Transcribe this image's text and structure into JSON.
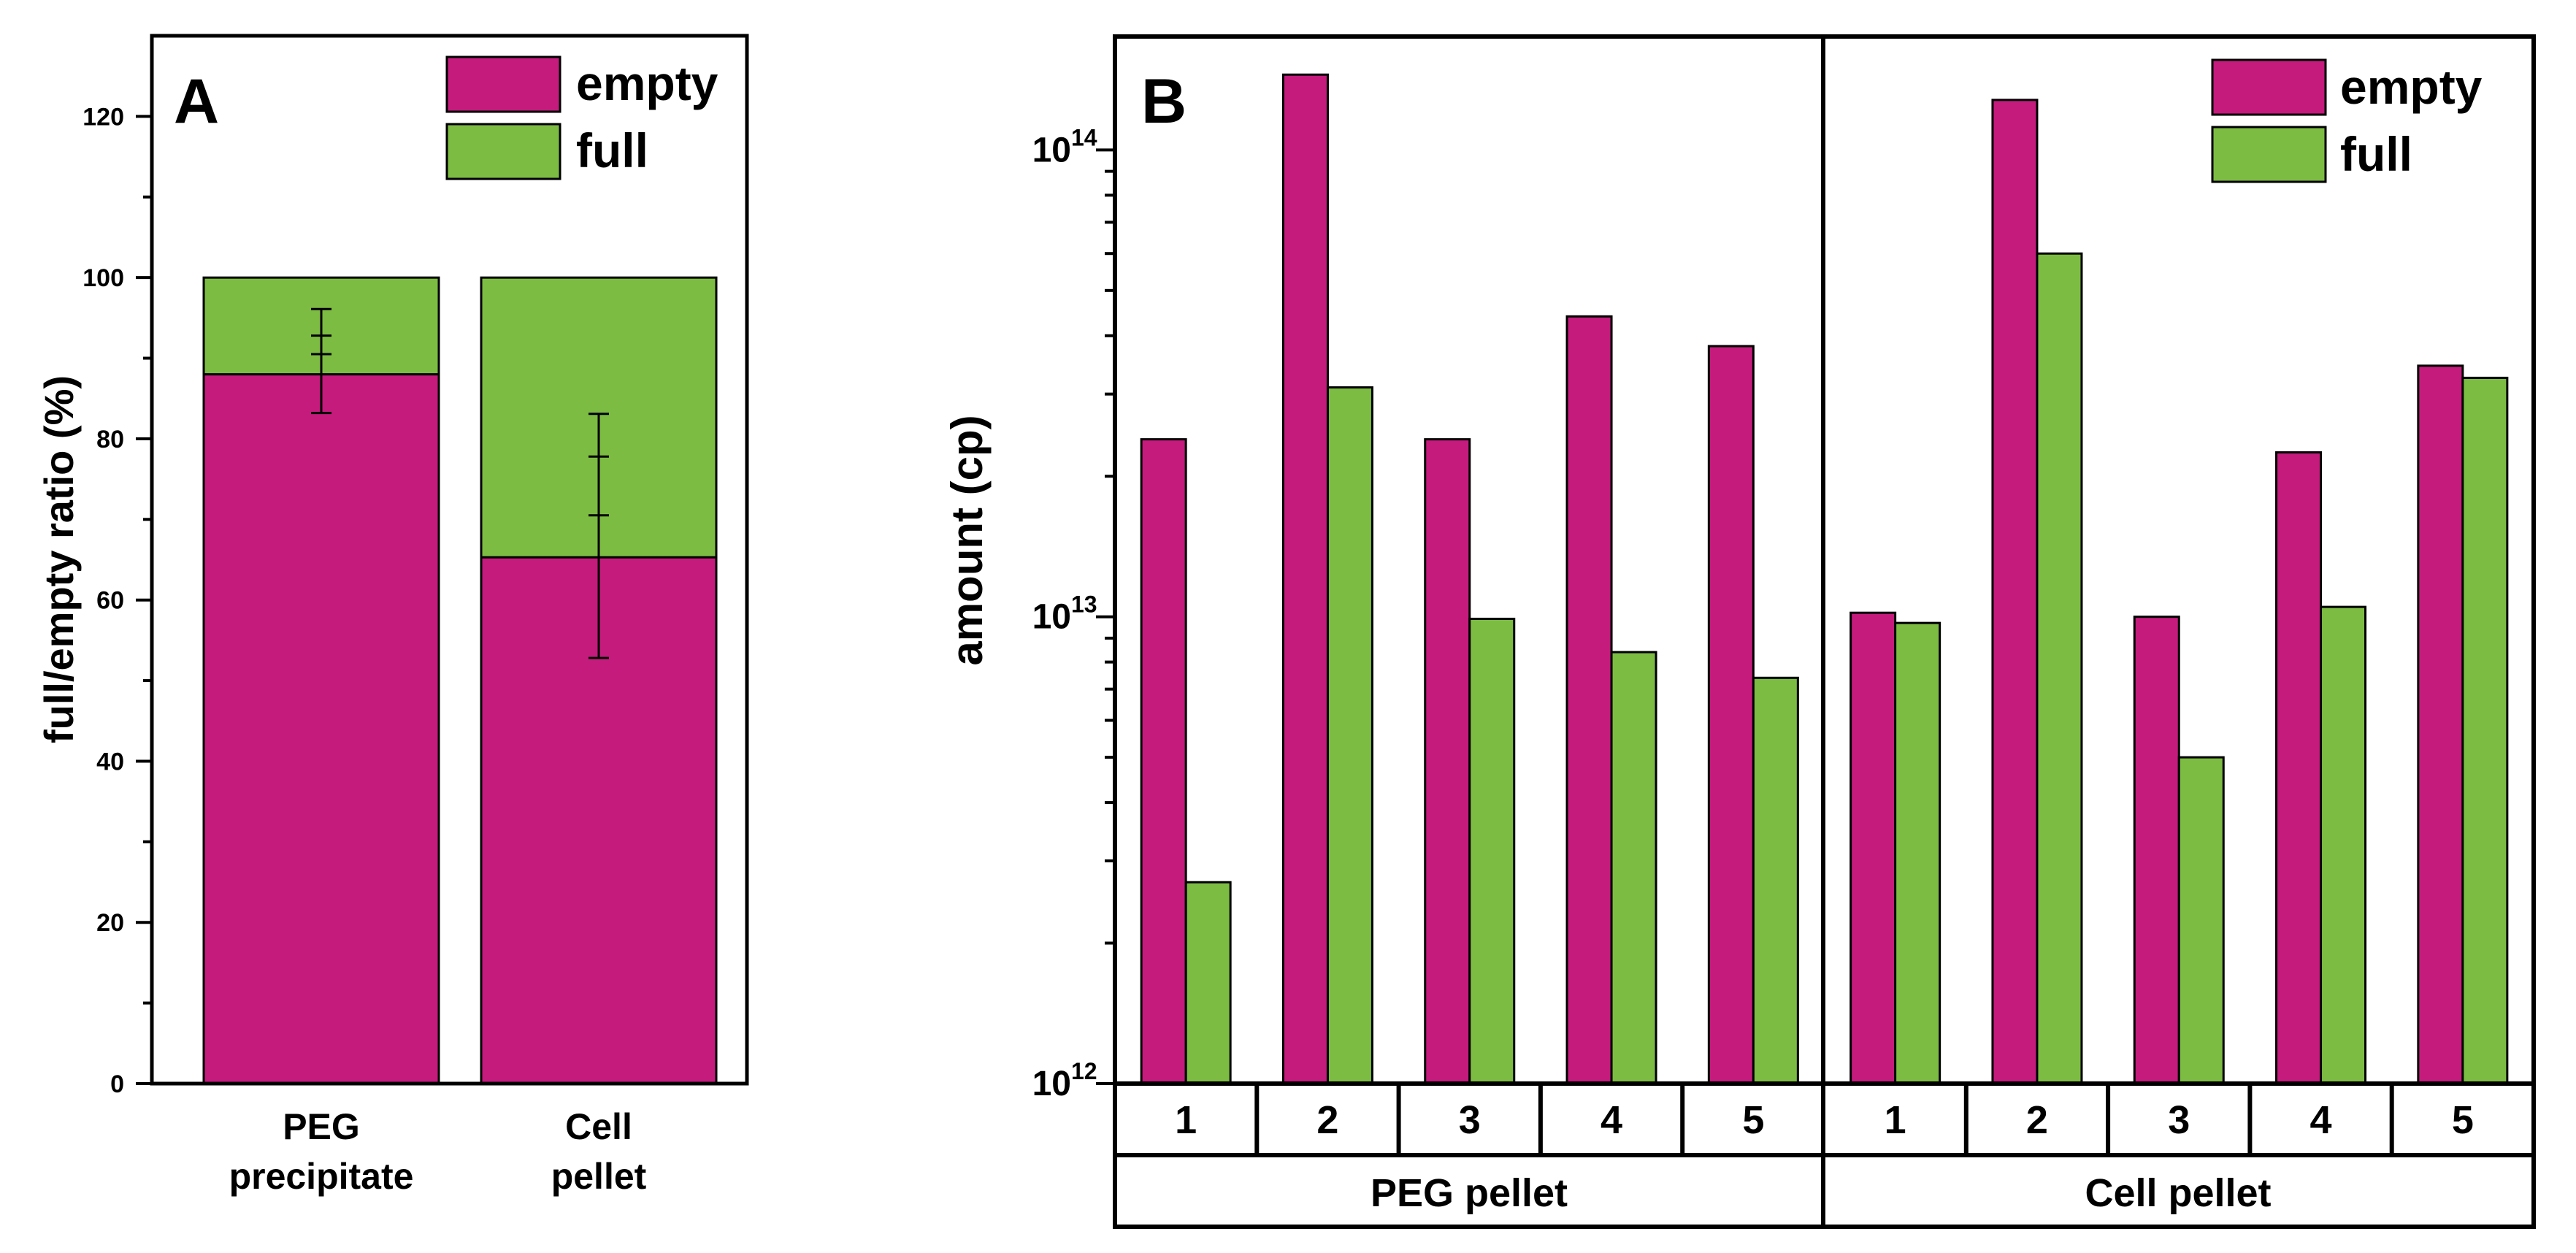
{
  "colors": {
    "empty": "#C51B7D",
    "full": "#7DBC42",
    "axis": "#000000"
  },
  "chart_data": [
    {
      "panel": "A",
      "type": "bar",
      "stacked": true,
      "title": "A",
      "xlabel": "",
      "ylabel": "full/empty ratio (%)",
      "ylim": [
        0,
        130
      ],
      "yticks": [
        "0",
        "20",
        "40",
        "60",
        "80",
        "100",
        "120"
      ],
      "categories": [
        [
          "PEG",
          "precipitate"
        ],
        [
          "Cell",
          "pellet"
        ]
      ],
      "series": [
        {
          "name": "empty",
          "values": [
            88,
            65.3
          ],
          "err": [
            4.8,
            12.5
          ]
        },
        {
          "name": "full",
          "values": [
            12,
            34.7
          ],
          "err": [
            2.8,
            6.3
          ]
        }
      ],
      "legend": {
        "position": "top-right",
        "entries": [
          "empty",
          "full"
        ]
      }
    },
    {
      "panel": "B",
      "type": "bar",
      "yscale": "log",
      "title": "B",
      "ylabel": "amount (cp)",
      "ylim": [
        1000000000000.0,
        175000000000000.0
      ],
      "yticks": [
        {
          "base": "10",
          "exp": "12"
        },
        {
          "base": "10",
          "exp": "13"
        },
        {
          "base": "10",
          "exp": "14"
        }
      ],
      "groups": [
        {
          "label": "PEG pellet",
          "categories": [
            "1",
            "2",
            "3",
            "4",
            "5"
          ]
        },
        {
          "label": "Cell pellet",
          "categories": [
            "1",
            "2",
            "3",
            "4",
            "5"
          ]
        }
      ],
      "series": [
        {
          "name": "empty",
          "values": [
            24000000000000.0,
            145000000000000.0,
            24000000000000.0,
            44000000000000.0,
            38000000000000.0,
            10200000000000.0,
            128000000000000.0,
            10000000000000.0,
            22500000000000.0,
            34500000000000.0
          ]
        },
        {
          "name": "full",
          "values": [
            2700000000000.0,
            31000000000000.0,
            9900000000000.0,
            8400000000000.0,
            7400000000000.0,
            9700000000000.0,
            60000000000000.0,
            5000000000000.0,
            10500000000000.0,
            32500000000000.0
          ]
        }
      ],
      "legend": {
        "position": "top-right",
        "entries": [
          "empty",
          "full"
        ]
      }
    }
  ]
}
